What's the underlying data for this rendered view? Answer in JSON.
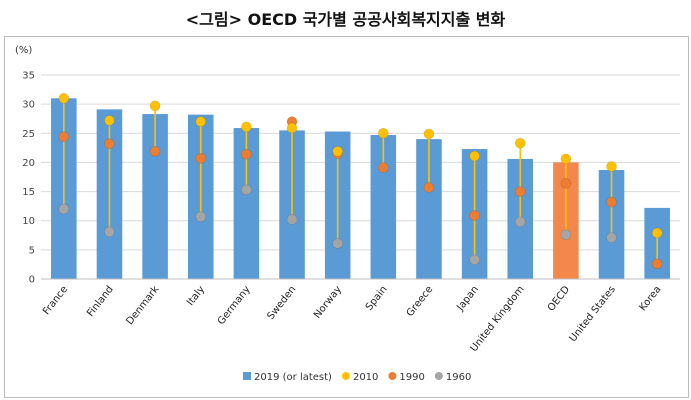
{
  "title": "<그림> OECD 국가별 공공사회복지지출 변화",
  "chart_data": {
    "type": "bar",
    "title": "",
    "xlabel": "",
    "ylabel": "(%)",
    "ylim": [
      0,
      35
    ],
    "yticks": [
      0,
      5,
      10,
      15,
      20,
      25,
      30,
      35
    ],
    "grid": true,
    "legend_position": "bottom",
    "categories": [
      "France",
      "Finland",
      "Denmark",
      "Italy",
      "Germany",
      "Sweden",
      "Norway",
      "Spain",
      "Greece",
      "Japan",
      "United Kingdom",
      "OECD",
      "United States",
      "Korea"
    ],
    "series": [
      {
        "name": "2019 (or latest)",
        "kind": "bar",
        "color": "#5b9bd5",
        "highlight_color": "#f4874b",
        "highlight_index": 11,
        "values": [
          31.0,
          29.1,
          28.3,
          28.2,
          25.9,
          25.5,
          25.3,
          24.7,
          24.0,
          22.3,
          20.6,
          20.0,
          18.7,
          12.2
        ]
      },
      {
        "name": "2010",
        "kind": "marker",
        "color": "#ffc000",
        "values": [
          31.0,
          27.2,
          29.7,
          27.0,
          26.1,
          25.9,
          21.9,
          25.0,
          24.9,
          21.1,
          23.3,
          20.6,
          19.3,
          7.9
        ]
      },
      {
        "name": "1990",
        "kind": "marker",
        "color": "#ed7d31",
        "values": [
          24.4,
          23.2,
          21.9,
          20.7,
          21.4,
          27.0,
          21.5,
          19.1,
          15.7,
          10.9,
          15.0,
          16.4,
          13.2,
          2.6
        ]
      },
      {
        "name": "1960",
        "kind": "marker",
        "color": "#a5a5a5",
        "values": [
          12.0,
          8.1,
          null,
          10.7,
          15.3,
          10.2,
          6.1,
          null,
          null,
          3.3,
          9.8,
          7.6,
          7.1,
          null
        ]
      }
    ]
  }
}
